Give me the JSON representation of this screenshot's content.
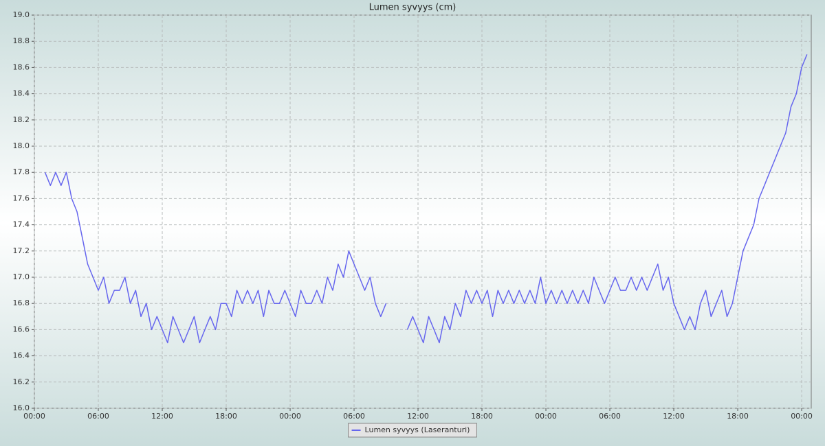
{
  "chart_data": {
    "type": "line",
    "title": "Lumen syvyys (cm)",
    "x": [
      1,
      1.5,
      2,
      2.5,
      3,
      3.5,
      4,
      4.5,
      5,
      5.5,
      6,
      6.5,
      7,
      7.5,
      8,
      8.5,
      9,
      9.5,
      10,
      10.5,
      11,
      11.5,
      12,
      12.5,
      13,
      13.5,
      14,
      14.5,
      15,
      15.5,
      16,
      16.5,
      17,
      17.5,
      18,
      18.5,
      19,
      19.5,
      20,
      20.5,
      21,
      21.5,
      22,
      22.5,
      23,
      23.5,
      24,
      24.5,
      25,
      25.5,
      26,
      26.5,
      27,
      27.5,
      28,
      28.5,
      29,
      29.5,
      30,
      30.5,
      31,
      31.5,
      32,
      32.5,
      33,
      33.5,
      34,
      34.5,
      35,
      35.5,
      36,
      36.5,
      37,
      37.5,
      38,
      38.5,
      39,
      39.5,
      40,
      40.5,
      41,
      41.5,
      42,
      42.5,
      43,
      43.5,
      44,
      44.5,
      45,
      45.5,
      46,
      46.5,
      47,
      47.5,
      48,
      48.5,
      49,
      49.5,
      50,
      50.5,
      51,
      51.5,
      52,
      52.5,
      53,
      53.5,
      54,
      54.5,
      55,
      55.5,
      56,
      56.5,
      57,
      57.5,
      58,
      58.5,
      59,
      59.5,
      60,
      60.5,
      61,
      61.5,
      62,
      62.5,
      63,
      63.5,
      64,
      64.5,
      65,
      65.5,
      66,
      66.5,
      67,
      67.5,
      68,
      68.5,
      69,
      69.5,
      70,
      70.5,
      71,
      71.5,
      72,
      72.5
    ],
    "series": [
      {
        "name": "Lumen syvyys (Laseranturi)",
        "color": "#6666ee",
        "values": [
          17.8,
          17.7,
          17.8,
          17.7,
          17.8,
          17.6,
          17.5,
          17.3,
          17.1,
          17.0,
          16.9,
          17.0,
          16.8,
          16.9,
          16.9,
          17.0,
          16.8,
          16.9,
          16.7,
          16.8,
          16.6,
          16.7,
          16.6,
          16.5,
          16.7,
          16.6,
          16.5,
          16.6,
          16.7,
          16.5,
          16.6,
          16.7,
          16.6,
          16.8,
          16.8,
          16.7,
          16.9,
          16.8,
          16.9,
          16.8,
          16.9,
          16.7,
          16.9,
          16.8,
          16.8,
          16.9,
          16.8,
          16.7,
          16.9,
          16.8,
          16.8,
          16.9,
          16.8,
          17.0,
          16.9,
          17.1,
          17.0,
          17.2,
          17.1,
          17.0,
          16.9,
          17.0,
          16.8,
          16.7,
          16.8,
          null,
          null,
          null,
          16.6,
          16.7,
          16.6,
          16.5,
          16.7,
          16.6,
          16.5,
          16.7,
          16.6,
          16.8,
          16.7,
          16.9,
          16.8,
          16.9,
          16.8,
          16.9,
          16.7,
          16.9,
          16.8,
          16.9,
          16.8,
          16.9,
          16.8,
          16.9,
          16.8,
          17.0,
          16.8,
          16.9,
          16.8,
          16.9,
          16.8,
          16.9,
          16.8,
          16.9,
          16.8,
          17.0,
          16.9,
          16.8,
          16.9,
          17.0,
          16.9,
          16.9,
          17.0,
          16.9,
          17.0,
          16.9,
          17.0,
          17.1,
          16.9,
          17.0,
          16.8,
          16.7,
          16.6,
          16.7,
          16.6,
          16.8,
          16.9,
          16.7,
          16.8,
          16.9,
          16.7,
          16.8,
          17.0,
          17.2,
          17.3,
          17.4,
          17.6,
          17.7,
          17.8,
          17.9,
          18.0,
          18.1,
          18.3,
          18.4,
          18.6,
          18.7
        ]
      }
    ],
    "xlim": [
      0,
      72.9
    ],
    "xticks": [
      {
        "value": 0,
        "label": "00:00"
      },
      {
        "value": 6,
        "label": "06:00"
      },
      {
        "value": 12,
        "label": "12:00"
      },
      {
        "value": 18,
        "label": "18:00"
      },
      {
        "value": 24,
        "label": "00:00"
      },
      {
        "value": 30,
        "label": "06:00"
      },
      {
        "value": 36,
        "label": "12:00"
      },
      {
        "value": 42,
        "label": "18:00"
      },
      {
        "value": 48,
        "label": "00:00"
      },
      {
        "value": 54,
        "label": "06:00"
      },
      {
        "value": 60,
        "label": "12:00"
      },
      {
        "value": 66,
        "label": "18:00"
      },
      {
        "value": 72,
        "label": "00:00"
      }
    ],
    "ylim": [
      16,
      19
    ],
    "yticks": [
      {
        "value": 16,
        "label": "16.0"
      },
      16.2,
      16.4,
      16.6,
      16.8,
      {
        "value": 17,
        "label": "17.0"
      },
      17.2,
      17.4,
      17.6,
      17.8,
      {
        "value": 18,
        "label": "18.0"
      },
      18.2,
      18.4,
      18.6,
      18.8,
      {
        "value": 19,
        "label": "19.0"
      }
    ],
    "grid": true,
    "legend": "bottom"
  }
}
